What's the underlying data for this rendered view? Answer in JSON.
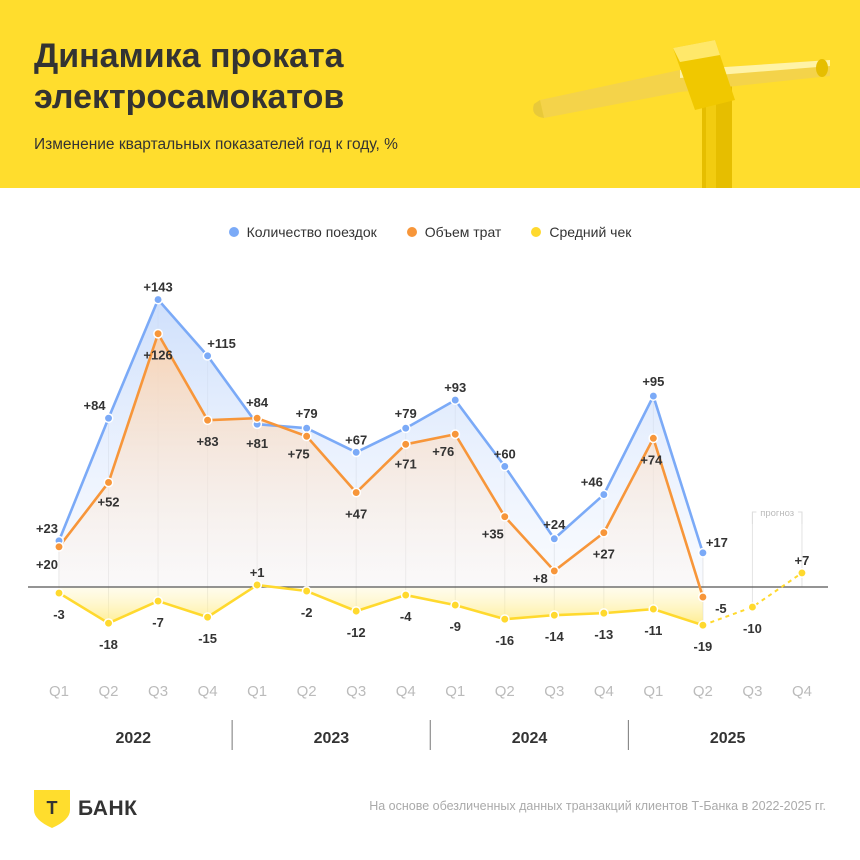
{
  "header": {
    "title": "Динамика проката электросамокатов",
    "subtitle": "Изменение квартальных показателей год к году, %"
  },
  "colors": {
    "header_bg": "#FFDD2D",
    "trips": "#7BAAF7",
    "spend": "#F7963A",
    "check": "#FFD92E"
  },
  "chart_data": {
    "type": "line",
    "categories": [
      "Q1",
      "Q2",
      "Q3",
      "Q4",
      "Q1",
      "Q2",
      "Q3",
      "Q4",
      "Q1",
      "Q2",
      "Q3",
      "Q4",
      "Q1",
      "Q2",
      "Q3",
      "Q4"
    ],
    "years": [
      "2022",
      "2023",
      "2024",
      "2025"
    ],
    "legend_position": "top",
    "series": [
      {
        "name": "Количество поездок",
        "values": [
          23,
          84,
          143,
          115,
          81,
          79,
          67,
          79,
          93,
          60,
          24,
          46,
          95,
          17,
          null,
          null
        ]
      },
      {
        "name": "Объем трат",
        "values": [
          20,
          52,
          126,
          83,
          84,
          75,
          47,
          71,
          76,
          35,
          8,
          27,
          74,
          -5,
          null,
          null
        ]
      },
      {
        "name": "Средний чек",
        "values": [
          -3,
          -18,
          -7,
          -15,
          1,
          -2,
          -12,
          -4,
          -9,
          -16,
          -14,
          -13,
          -11,
          -19,
          -10,
          7
        ],
        "forecast_from_index": 13
      }
    ],
    "forecast_label": "прогноз",
    "grid": false
  },
  "footer": {
    "logo_text": "БАНК",
    "logo_letter": "Т",
    "source": "На основе обезличенных данных транзакций клиентов Т-Банка в 2022-2025 гг."
  }
}
